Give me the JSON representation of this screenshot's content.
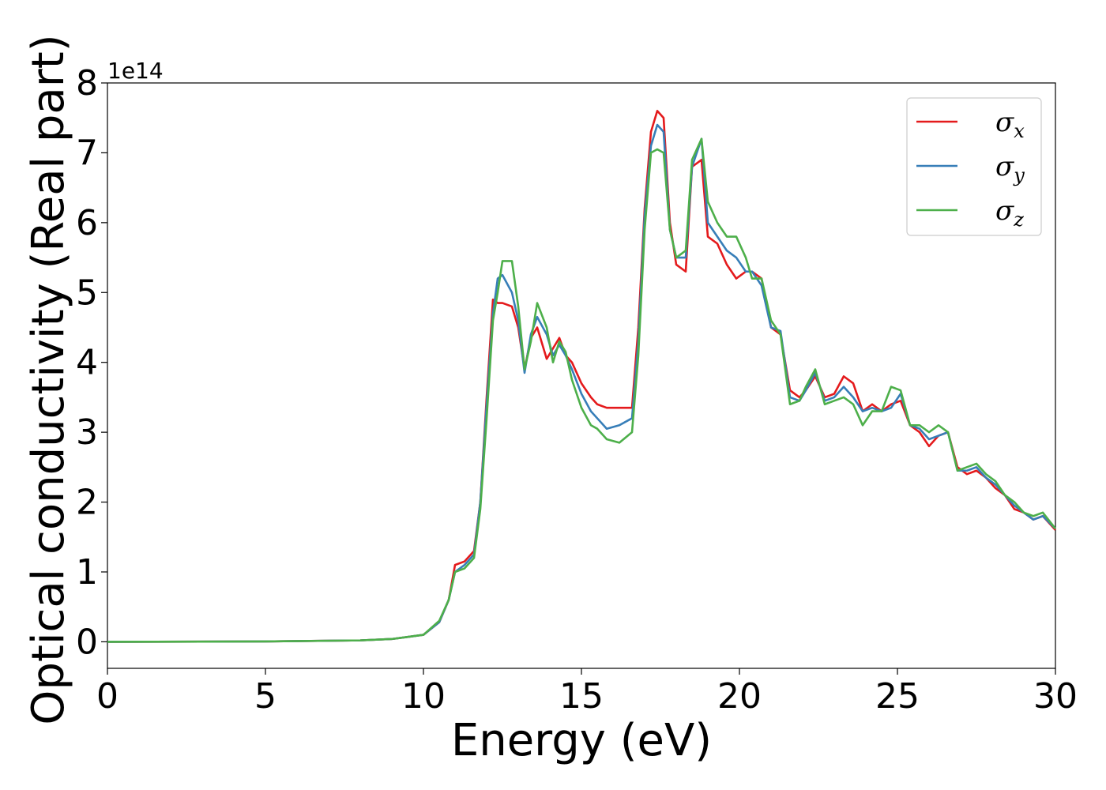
{
  "chart_data": {
    "type": "line",
    "xlabel": "Energy (eV)",
    "ylabel": "Optical conductivity (Real part)",
    "y_multiplier_label": "1e14",
    "xlim": [
      0,
      30
    ],
    "ylim": [
      -0.38,
      8.0
    ],
    "x_ticks": [
      0,
      5,
      10,
      15,
      20,
      25,
      30
    ],
    "y_ticks": [
      0,
      1,
      2,
      3,
      4,
      5,
      6,
      7,
      8
    ],
    "grid": false,
    "legend_position": "top-right",
    "colors": {
      "sigma_x": "#e41a1c",
      "sigma_y": "#377eb8",
      "sigma_z": "#4daf4a"
    },
    "series": [
      {
        "name": "σx",
        "legend_base": "σ",
        "legend_sub": "x",
        "color": "#e41a1c",
        "x": [
          0,
          5,
          8,
          9,
          10,
          10.5,
          10.8,
          11,
          11.3,
          11.6,
          11.8,
          12,
          12.2,
          12.35,
          12.5,
          12.8,
          13,
          13.2,
          13.4,
          13.6,
          13.9,
          14.1,
          14.3,
          14.5,
          14.7,
          15,
          15.3,
          15.5,
          15.8,
          16.2,
          16.6,
          16.8,
          17,
          17.2,
          17.4,
          17.6,
          17.8,
          18,
          18.3,
          18.5,
          18.8,
          19,
          19.3,
          19.6,
          19.9,
          20.2,
          20.4,
          20.7,
          21,
          21.3,
          21.6,
          21.9,
          22.1,
          22.4,
          22.7,
          23,
          23.3,
          23.6,
          23.9,
          24.2,
          24.5,
          24.8,
          25.1,
          25.4,
          25.7,
          26,
          26.3,
          26.6,
          26.9,
          27.2,
          27.5,
          27.8,
          28.1,
          28.4,
          28.7,
          29,
          29.3,
          29.6,
          30
        ],
        "y": [
          0,
          0.005,
          0.02,
          0.04,
          0.1,
          0.28,
          0.6,
          1.1,
          1.15,
          1.3,
          2.0,
          3.5,
          4.9,
          4.85,
          4.85,
          4.8,
          4.5,
          3.9,
          4.35,
          4.5,
          4.05,
          4.2,
          4.35,
          4.1,
          4.0,
          3.7,
          3.5,
          3.4,
          3.35,
          3.35,
          3.35,
          4.5,
          6.2,
          7.3,
          7.6,
          7.5,
          6.0,
          5.4,
          5.3,
          6.8,
          6.9,
          5.8,
          5.7,
          5.4,
          5.2,
          5.3,
          5.3,
          5.2,
          4.5,
          4.4,
          3.6,
          3.5,
          3.6,
          3.8,
          3.5,
          3.55,
          3.8,
          3.7,
          3.3,
          3.4,
          3.3,
          3.4,
          3.45,
          3.1,
          3.0,
          2.8,
          2.95,
          3.0,
          2.5,
          2.4,
          2.45,
          2.35,
          2.2,
          2.1,
          1.9,
          1.85,
          1.75,
          1.8,
          1.6
        ]
      },
      {
        "name": "σy",
        "legend_base": "σ",
        "legend_sub": "y",
        "color": "#377eb8",
        "x": [
          0,
          5,
          8,
          9,
          10,
          10.5,
          10.8,
          11,
          11.3,
          11.6,
          11.8,
          12,
          12.2,
          12.35,
          12.5,
          12.8,
          13,
          13.2,
          13.4,
          13.6,
          13.9,
          14.1,
          14.3,
          14.5,
          14.7,
          15,
          15.3,
          15.5,
          15.8,
          16.2,
          16.6,
          16.8,
          17,
          17.2,
          17.4,
          17.6,
          17.8,
          18,
          18.3,
          18.5,
          18.8,
          19,
          19.3,
          19.6,
          19.9,
          20.2,
          20.4,
          20.7,
          21,
          21.3,
          21.6,
          21.9,
          22.1,
          22.4,
          22.7,
          23,
          23.3,
          23.6,
          23.9,
          24.2,
          24.5,
          24.8,
          25.1,
          25.4,
          25.7,
          26,
          26.3,
          26.6,
          26.9,
          27.2,
          27.5,
          27.8,
          28.1,
          28.4,
          28.7,
          29,
          29.3,
          29.6,
          30
        ],
        "y": [
          0,
          0.005,
          0.02,
          0.04,
          0.1,
          0.28,
          0.6,
          1.0,
          1.1,
          1.25,
          2.0,
          3.4,
          4.7,
          5.2,
          5.25,
          5.0,
          4.6,
          3.85,
          4.4,
          4.65,
          4.4,
          4.1,
          4.25,
          4.1,
          3.9,
          3.55,
          3.3,
          3.2,
          3.05,
          3.1,
          3.2,
          4.3,
          6.1,
          7.1,
          7.4,
          7.3,
          5.9,
          5.5,
          5.5,
          6.8,
          7.2,
          6.0,
          5.8,
          5.6,
          5.5,
          5.3,
          5.3,
          5.1,
          4.5,
          4.45,
          3.5,
          3.45,
          3.6,
          3.85,
          3.45,
          3.5,
          3.65,
          3.5,
          3.3,
          3.35,
          3.3,
          3.35,
          3.55,
          3.1,
          3.05,
          2.9,
          2.95,
          3.0,
          2.45,
          2.45,
          2.5,
          2.35,
          2.25,
          2.1,
          1.95,
          1.85,
          1.75,
          1.8,
          1.62
        ]
      },
      {
        "name": "σz",
        "legend_base": "σ",
        "legend_sub": "z",
        "color": "#4daf4a",
        "x": [
          0,
          5,
          8,
          9,
          10,
          10.5,
          10.8,
          11,
          11.3,
          11.6,
          11.8,
          12,
          12.2,
          12.35,
          12.5,
          12.8,
          13,
          13.2,
          13.4,
          13.6,
          13.9,
          14.1,
          14.3,
          14.5,
          14.7,
          15,
          15.3,
          15.5,
          15.8,
          16.2,
          16.6,
          16.8,
          17,
          17.2,
          17.4,
          17.6,
          17.8,
          18,
          18.3,
          18.5,
          18.8,
          19,
          19.3,
          19.6,
          19.9,
          20.2,
          20.4,
          20.7,
          21,
          21.3,
          21.6,
          21.9,
          22.1,
          22.4,
          22.7,
          23,
          23.3,
          23.6,
          23.9,
          24.2,
          24.5,
          24.8,
          25.1,
          25.4,
          25.7,
          26,
          26.3,
          26.6,
          26.9,
          27.2,
          27.5,
          27.8,
          28.1,
          28.4,
          28.7,
          29,
          29.3,
          29.6,
          30
        ],
        "y": [
          0,
          0.005,
          0.02,
          0.04,
          0.1,
          0.3,
          0.6,
          1.0,
          1.05,
          1.2,
          1.9,
          3.2,
          4.6,
          5.0,
          5.45,
          5.45,
          4.8,
          3.9,
          4.3,
          4.85,
          4.5,
          4.0,
          4.3,
          4.15,
          3.75,
          3.35,
          3.1,
          3.05,
          2.9,
          2.85,
          3.0,
          4.1,
          5.9,
          7.0,
          7.05,
          7.0,
          5.9,
          5.5,
          5.6,
          6.9,
          7.2,
          6.3,
          6.0,
          5.8,
          5.8,
          5.5,
          5.2,
          5.2,
          4.6,
          4.4,
          3.4,
          3.45,
          3.65,
          3.9,
          3.4,
          3.45,
          3.5,
          3.4,
          3.1,
          3.3,
          3.3,
          3.65,
          3.6,
          3.1,
          3.1,
          3.0,
          3.1,
          3.0,
          2.45,
          2.5,
          2.55,
          2.4,
          2.3,
          2.1,
          2.0,
          1.85,
          1.8,
          1.85,
          1.62
        ]
      }
    ]
  }
}
